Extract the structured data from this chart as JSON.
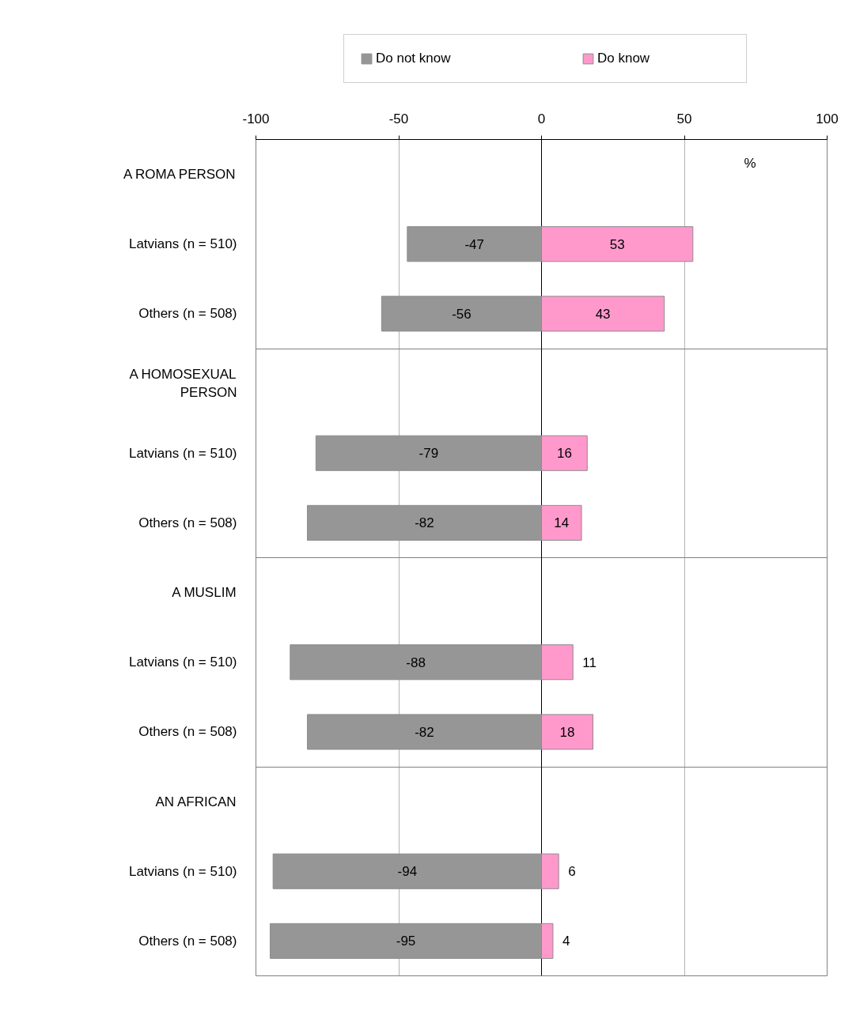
{
  "chart_data": {
    "type": "bar",
    "orientation": "horizontal",
    "stacked": true,
    "categories": [
      "A ROMA PERSON",
      "Latvians (n = 510)",
      "Others (n = 508)",
      "A HOMOSEXUAL PERSON",
      "Latvians (n = 510)",
      "Others (n = 508)",
      "A MUSLIM",
      "Latvians (n = 510)",
      "Others (n = 508)",
      "AN AFRICAN",
      "Latvians (n = 510)",
      "Others (n = 508)"
    ],
    "series": [
      {
        "name": "Do not know",
        "color": "#969696",
        "values": [
          null,
          -47,
          -56,
          null,
          -79,
          -82,
          null,
          -88,
          -82,
          null,
          -94,
          -95
        ]
      },
      {
        "name": "Do know",
        "color": "#ff99cc",
        "values": [
          null,
          53,
          43,
          null,
          16,
          14,
          null,
          11,
          18,
          null,
          6,
          4
        ]
      }
    ],
    "xlim": [
      -100,
      100
    ],
    "xticks": [
      -100,
      -50,
      0,
      50,
      100
    ],
    "grid": true,
    "legend": "top",
    "data_labels": true,
    "annotations": [
      "%"
    ]
  }
}
